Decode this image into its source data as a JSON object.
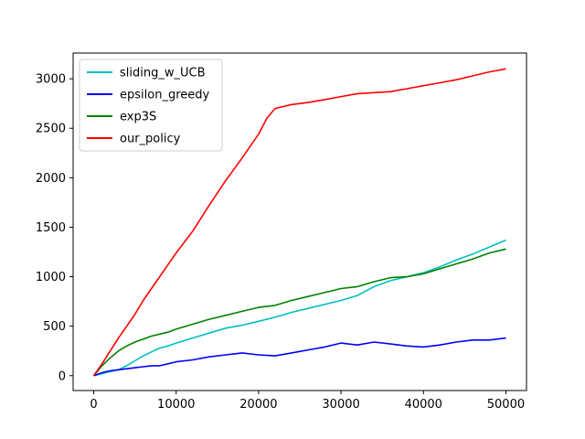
{
  "chart_data": {
    "type": "line",
    "title": "",
    "xlabel": "",
    "ylabel": "",
    "xlim": [
      -2500,
      52500
    ],
    "ylim": [
      -150,
      3260
    ],
    "xticks": [
      0,
      10000,
      20000,
      30000,
      40000,
      50000
    ],
    "xtick_labels": [
      "0",
      "10000",
      "20000",
      "30000",
      "40000",
      "50000"
    ],
    "yticks": [
      0,
      500,
      1000,
      1500,
      2000,
      2500,
      3000
    ],
    "ytick_labels": [
      "0",
      "500",
      "1000",
      "1500",
      "2000",
      "2500",
      "3000"
    ],
    "grid": false,
    "legend_position": "top-left",
    "series": [
      {
        "name": "sliding_w_UCB",
        "color": "#00bfbf",
        "x": [
          0,
          1000,
          2000,
          3000,
          4000,
          5000,
          6000,
          7000,
          8000,
          9000,
          10000,
          12000,
          14000,
          16000,
          18000,
          20000,
          22000,
          24000,
          26000,
          28000,
          30000,
          32000,
          34000,
          36000,
          38000,
          40000,
          42000,
          44000,
          46000,
          48000,
          50000
        ],
        "y": [
          0,
          20,
          40,
          60,
          100,
          150,
          200,
          240,
          280,
          300,
          330,
          380,
          430,
          480,
          510,
          550,
          590,
          640,
          680,
          720,
          760,
          810,
          900,
          960,
          1000,
          1040,
          1100,
          1170,
          1230,
          1300,
          1370
        ]
      },
      {
        "name": "epsilon_greedy",
        "color": "#0000ff",
        "x": [
          0,
          1000,
          2000,
          3000,
          4000,
          5000,
          6000,
          7000,
          8000,
          9000,
          10000,
          12000,
          14000,
          16000,
          18000,
          20000,
          22000,
          24000,
          26000,
          28000,
          30000,
          32000,
          34000,
          36000,
          38000,
          40000,
          42000,
          44000,
          46000,
          48000,
          50000
        ],
        "y": [
          0,
          30,
          50,
          60,
          70,
          80,
          90,
          100,
          100,
          120,
          140,
          160,
          190,
          210,
          230,
          210,
          200,
          230,
          260,
          290,
          330,
          310,
          340,
          320,
          300,
          290,
          310,
          340,
          360,
          360,
          380
        ]
      },
      {
        "name": "exp3S",
        "color": "#008000",
        "x": [
          0,
          1000,
          2000,
          3000,
          4000,
          5000,
          6000,
          7000,
          8000,
          9000,
          10000,
          12000,
          14000,
          16000,
          18000,
          20000,
          22000,
          24000,
          26000,
          28000,
          30000,
          32000,
          34000,
          36000,
          38000,
          40000,
          42000,
          44000,
          46000,
          48000,
          50000
        ],
        "y": [
          0,
          100,
          180,
          250,
          300,
          340,
          370,
          400,
          420,
          440,
          470,
          520,
          570,
          610,
          650,
          690,
          710,
          760,
          800,
          840,
          880,
          900,
          950,
          990,
          1000,
          1030,
          1080,
          1130,
          1180,
          1240,
          1280
        ]
      },
      {
        "name": "our_policy",
        "color": "#ff0000",
        "x": [
          0,
          1000,
          2000,
          3000,
          4000,
          5000,
          6000,
          7000,
          8000,
          9000,
          10000,
          12000,
          14000,
          16000,
          18000,
          20000,
          21000,
          22000,
          24000,
          26000,
          28000,
          30000,
          32000,
          34000,
          36000,
          38000,
          40000,
          42000,
          44000,
          46000,
          48000,
          50000
        ],
        "y": [
          0,
          120,
          250,
          380,
          500,
          620,
          760,
          880,
          1000,
          1120,
          1240,
          1460,
          1720,
          1970,
          2200,
          2440,
          2600,
          2700,
          2740,
          2760,
          2790,
          2820,
          2850,
          2860,
          2870,
          2900,
          2930,
          2960,
          2990,
          3030,
          3070,
          3100
        ]
      }
    ]
  }
}
